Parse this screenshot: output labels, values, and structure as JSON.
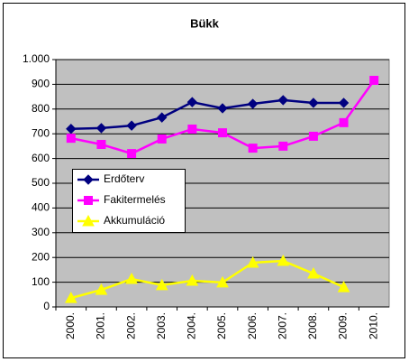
{
  "chart_data": {
    "type": "line",
    "title": "Bükk",
    "categories": [
      "2000.",
      "2001.",
      "2002.",
      "2003.",
      "2004.",
      "2005.",
      "2006.",
      "2007.",
      "2008.",
      "2009.",
      "2010."
    ],
    "series": [
      {
        "name": "Erdőterv",
        "color": "#000080",
        "marker": "diamond",
        "values": [
          720,
          723,
          733,
          766,
          828,
          803,
          821,
          836,
          825,
          825,
          null
        ]
      },
      {
        "name": "Fakitermelés",
        "color": "#FF00FF",
        "marker": "square",
        "values": [
          682,
          657,
          620,
          679,
          719,
          704,
          642,
          650,
          690,
          745,
          916
        ]
      },
      {
        "name": "Akkumuláció",
        "color": "#FFFF00",
        "marker": "triangle",
        "values": [
          36,
          69,
          113,
          88,
          106,
          99,
          179,
          186,
          135,
          80,
          null
        ]
      }
    ],
    "ylim": [
      0,
      1000
    ],
    "yticks": [
      0,
      100,
      200,
      300,
      400,
      500,
      600,
      700,
      800,
      900,
      {
        "value": 1000,
        "label": "1.000"
      }
    ],
    "grid": true
  }
}
